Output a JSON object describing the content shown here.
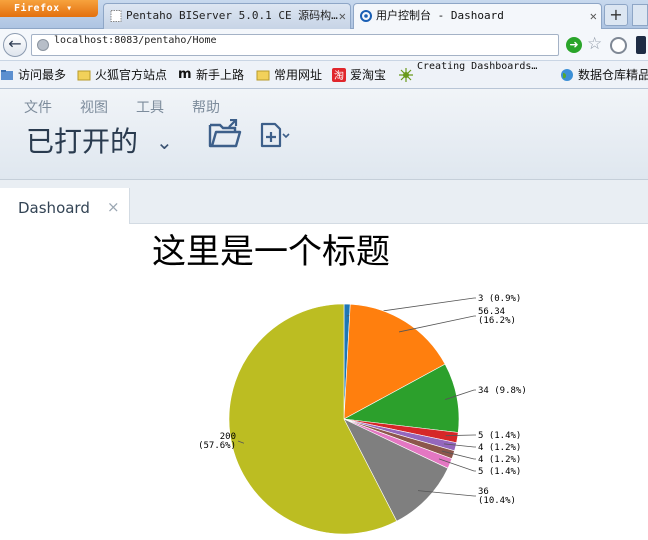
{
  "browser": {
    "menu_button": "Firefox",
    "tabs": [
      {
        "title": "Pentaho BIServer 5.0.1 CE 源码构…",
        "active": false
      },
      {
        "title": "用户控制台 - Dashoard",
        "active": true
      }
    ],
    "new_tab": "+",
    "address": "localhost:8083/pentaho/Home",
    "bookmarks": [
      {
        "label": "访问最多"
      },
      {
        "label": "火狐官方站点"
      },
      {
        "label": "新手上路"
      },
      {
        "label": "常用网址"
      },
      {
        "label": "爱淘宝"
      },
      {
        "label": "Creating Dashboards…"
      },
      {
        "label": "数据仓库精品"
      }
    ]
  },
  "app": {
    "menu": [
      "文件",
      "视图",
      "工具",
      "帮助"
    ],
    "opened_label": "已打开的",
    "tab": {
      "label": "Dashoard",
      "close": "×"
    }
  },
  "dashboard": {
    "title": "这里是一个标题"
  },
  "chart_data": {
    "type": "pie",
    "title": "这里是一个标题",
    "slices": [
      {
        "value": 3,
        "label": "3 (0.9%)",
        "color": "#1f77b4"
      },
      {
        "value": 56.34,
        "label": "56.34 (16.2%)",
        "color": "#ff7f0e"
      },
      {
        "value": 34,
        "label": "34 (9.8%)",
        "color": "#2ca02c"
      },
      {
        "value": 5,
        "label": "5 (1.4%)",
        "color": "#d62728"
      },
      {
        "value": 4,
        "label": "4 (1.2%)",
        "color": "#9467bd"
      },
      {
        "value": 4,
        "label": "4 (1.2%)",
        "color": "#8c564b"
      },
      {
        "value": 5,
        "label": "5 (1.4%)",
        "color": "#e377c2"
      },
      {
        "value": 36,
        "label": "36 (10.4%)",
        "color": "#7f7f7f"
      },
      {
        "value": 200,
        "label": "200 (57.6%)",
        "color": "#bcbd22"
      }
    ]
  }
}
